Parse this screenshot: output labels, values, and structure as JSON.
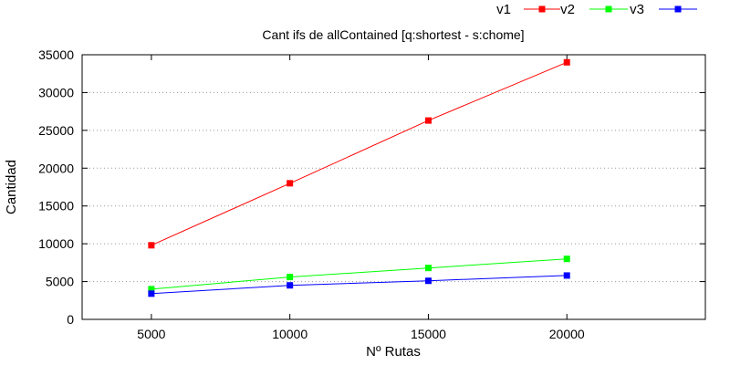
{
  "chart_data": {
    "type": "line",
    "title": "Cant ifs de allContained [q:shortest - s:chome]",
    "xlabel": "Nº Rutas",
    "ylabel": "Cantidad",
    "x": [
      5000,
      10000,
      15000,
      20000
    ],
    "xlim": [
      2500,
      25000
    ],
    "ylim": [
      0,
      35000
    ],
    "x_ticks": [
      "5000",
      "10000",
      "15000",
      "20000"
    ],
    "y_ticks": [
      "0",
      "5000",
      "10000",
      "15000",
      "20000",
      "25000",
      "30000",
      "35000"
    ],
    "y_tick_values": [
      0,
      5000,
      10000,
      15000,
      20000,
      25000,
      30000,
      35000
    ],
    "grid": "horizontal-dotted",
    "legend_position": "top-right",
    "series": [
      {
        "name": "v1",
        "color": "#ff0000",
        "values": [
          9800,
          18000,
          26300,
          34000
        ]
      },
      {
        "name": "v2",
        "color": "#00ff00",
        "values": [
          4000,
          5600,
          6800,
          8000
        ]
      },
      {
        "name": "v3",
        "color": "#0000ff",
        "values": [
          3400,
          4500,
          5100,
          5800
        ]
      }
    ]
  }
}
